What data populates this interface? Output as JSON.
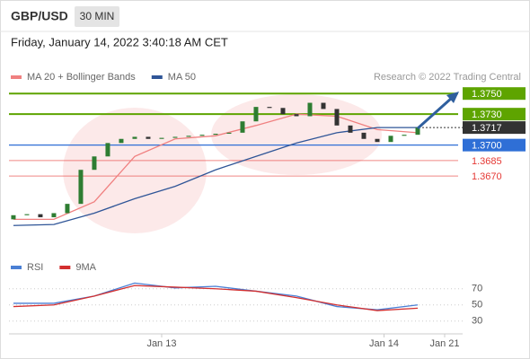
{
  "header": {
    "symbol": "GBP/USD",
    "timeframe": "30 MIN",
    "timestamp": "Friday, January 14, 2022 3:40:18 AM CET"
  },
  "chart_data": [
    {
      "type": "candlestick",
      "attribution": "Research © 2022 Trading Central",
      "xlim": [
        -0.33,
        33
      ],
      "ylim": [
        1.3597,
        1.3758
      ],
      "xticks": [
        {
          "value": 11,
          "label": "Jan 13"
        },
        {
          "value": 27.5,
          "label": "Jan 14"
        },
        {
          "value": 32,
          "label": "Jan 21"
        }
      ],
      "up_color": "#2e7d32",
      "down_color": "#333333",
      "open": [
        1.3628,
        1.3632,
        1.3633,
        1.363,
        1.3634,
        1.3643,
        1.3676,
        1.3689,
        1.3702,
        1.3706,
        1.3708,
        1.3706,
        1.3707,
        1.3708,
        1.3709,
        1.371,
        1.3711,
        1.3712,
        1.3723,
        1.3737,
        1.3736,
        1.373,
        1.3728,
        1.3741,
        1.3735,
        1.3719,
        1.3712,
        1.3706,
        1.3703,
        1.3709,
        1.371
      ],
      "close": [
        1.3632,
        1.3633,
        1.363,
        1.3634,
        1.3643,
        1.3676,
        1.3689,
        1.3702,
        1.3706,
        1.3708,
        1.3706,
        1.3707,
        1.3708,
        1.3709,
        1.371,
        1.3711,
        1.3712,
        1.3723,
        1.3737,
        1.3736,
        1.373,
        1.3728,
        1.3741,
        1.3735,
        1.3719,
        1.3712,
        1.3706,
        1.3703,
        1.3709,
        1.371,
        1.3717
      ],
      "series": [
        {
          "name": "MA 20 + Bollinger Bands",
          "color": "#f08080",
          "x": [
            0,
            3,
            6,
            9,
            12,
            15,
            18,
            21,
            24,
            27,
            30
          ],
          "values": [
            1.3628,
            1.3628,
            1.3645,
            1.3689,
            1.3706,
            1.3709,
            1.3719,
            1.373,
            1.3728,
            1.3715,
            1.3712
          ]
        },
        {
          "name": "MA 50",
          "color": "#2f5597",
          "x": [
            0,
            3,
            6,
            9,
            12,
            15,
            18,
            21,
            24,
            27,
            30
          ],
          "values": [
            1.3622,
            1.3623,
            1.3634,
            1.3648,
            1.366,
            1.3676,
            1.3689,
            1.3702,
            1.3712,
            1.3717,
            1.3717
          ]
        }
      ],
      "levels": [
        {
          "value": 1.375,
          "label": "1.3750",
          "color": "#5ea400",
          "line": "solid",
          "label_style": "box"
        },
        {
          "value": 1.373,
          "label": "1.3730",
          "color": "#5ea400",
          "line": "solid",
          "label_style": "box"
        },
        {
          "value": 1.3717,
          "label": "1.3717",
          "color": "#333333",
          "line": "dotted",
          "label_style": "box"
        },
        {
          "value": 1.37,
          "label": "1.3700",
          "color": "#2f6fd6",
          "line": "solid",
          "label_style": "box"
        },
        {
          "value": 1.3685,
          "label": "1.3685",
          "color": "#e53935",
          "line": "solid",
          "label_style": "text"
        },
        {
          "value": 1.367,
          "label": "1.3670",
          "color": "#e53935",
          "line": "solid",
          "label_style": "text"
        }
      ]
    },
    {
      "type": "line",
      "xlim": [
        -0.33,
        33
      ],
      "ylim": [
        22,
        83
      ],
      "yticks": [
        30,
        50,
        70
      ],
      "series": [
        {
          "name": "RSI",
          "color": "#4a7fd4",
          "x": [
            0,
            3,
            6,
            9,
            12,
            15,
            18,
            21,
            24,
            27,
            30
          ],
          "values": [
            52,
            52,
            61,
            77,
            71,
            73,
            67,
            61,
            48,
            44,
            50
          ]
        },
        {
          "name": "9MA",
          "color": "#d32f2f",
          "x": [
            0,
            3,
            6,
            9,
            12,
            15,
            18,
            21,
            24,
            27,
            30
          ],
          "values": [
            48,
            50,
            61,
            74,
            72,
            70,
            67,
            59,
            50,
            43,
            46
          ]
        }
      ]
    }
  ]
}
